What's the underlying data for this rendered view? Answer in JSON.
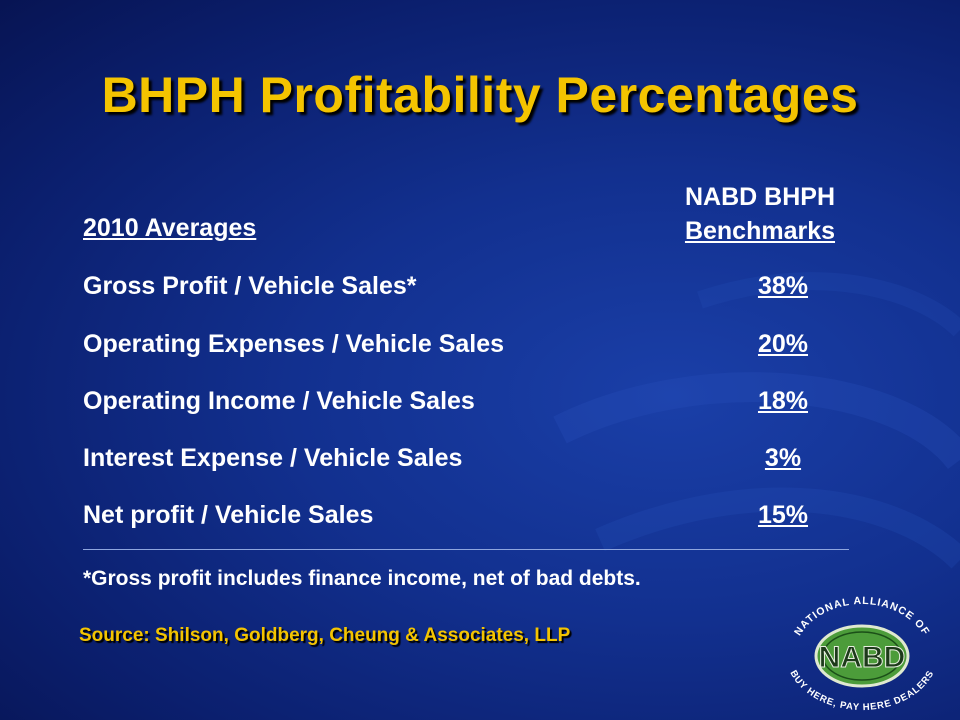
{
  "slide": {
    "title": "BHPH Profitability Percentages",
    "header_left": "2010 Averages",
    "header_right_line1": "NABD BHPH",
    "header_right_line2": "Benchmarks",
    "rows": [
      {
        "label": "Gross Profit / Vehicle Sales*",
        "value": "38%"
      },
      {
        "label": "Operating Expenses / Vehicle Sales",
        "value": "20%"
      },
      {
        "label": "Operating Income / Vehicle Sales",
        "value": "18%"
      },
      {
        "label": "Interest Expense / Vehicle Sales",
        "value": "3%"
      },
      {
        "label": "Net profit / Vehicle Sales",
        "value": "15%"
      }
    ],
    "footnote": "*Gross profit includes finance income, net of bad debts.",
    "source": "Source: Shilson, Goldberg, Cheung & Associates, LLP"
  },
  "logo": {
    "center_text": "NABD",
    "ring_top": "NATIONAL ALLIANCE OF",
    "ring_bottom": "BUY HERE, PAY HERE DEALERS"
  },
  "colors": {
    "title": "#f4c400",
    "text": "#ffffff",
    "background": "#12308f",
    "logo_green": "#4c9c3a"
  }
}
